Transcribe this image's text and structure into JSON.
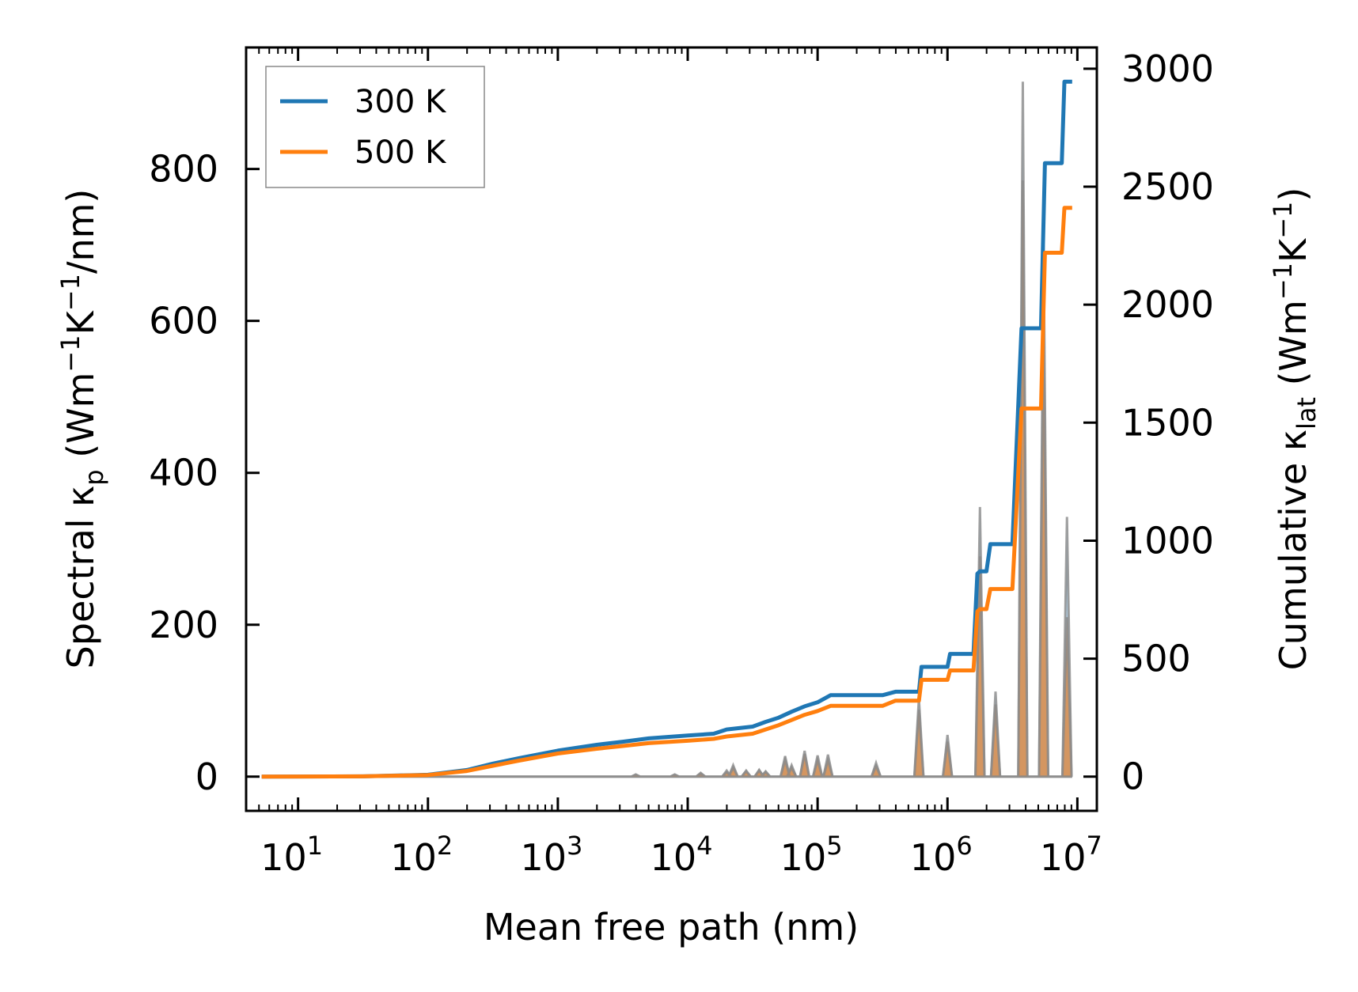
{
  "chart_data": {
    "type": "line",
    "xscale": "log",
    "xlim_log10": [
      0.6,
      7.15
    ],
    "xticks": [
      {
        "base": "10",
        "exp": "1",
        "log10": 1
      },
      {
        "base": "10",
        "exp": "2",
        "log10": 2
      },
      {
        "base": "10",
        "exp": "3",
        "log10": 3
      },
      {
        "base": "10",
        "exp": "4",
        "log10": 4
      },
      {
        "base": "10",
        "exp": "5",
        "log10": 5
      },
      {
        "base": "10",
        "exp": "6",
        "log10": 6
      },
      {
        "base": "10",
        "exp": "7",
        "log10": 7
      }
    ],
    "xlabel": "Mean free path (nm)",
    "left_axis": {
      "ylim": [
        -45,
        960
      ],
      "ticks": [
        0,
        200,
        400,
        600,
        800
      ],
      "tick_labels": [
        "0",
        "200",
        "400",
        "600",
        "800"
      ],
      "label_parts": {
        "a": "Spectral κ",
        "sub": "p",
        "b": " (Wm",
        "sup1": "−1",
        "c": "K",
        "sup2": "−1",
        "d": "/nm)"
      }
    },
    "right_axis": {
      "ylim": [
        -145,
        3090
      ],
      "ticks": [
        0,
        500,
        1000,
        1500,
        2000,
        2500,
        3000
      ],
      "tick_labels": [
        "0",
        "500",
        "1000",
        "1500",
        "2000",
        "2500",
        "3000"
      ],
      "label_parts": {
        "a": "Cumulative κ",
        "sub": "lat",
        "b": " (Wm",
        "sup1": "−1",
        "c": "K",
        "sup2": "−1",
        "d": ")"
      }
    },
    "legend": {
      "position": "top-left",
      "entries": [
        "300 K",
        "500 K"
      ]
    },
    "colors": {
      "300K": "#1f77b4",
      "500K": "#ff7f0e",
      "spectral_300K": "#9ec2dc",
      "spectral_500K": "#d98c4a",
      "spectral_edge": "#8a8a8a"
    },
    "series": [
      {
        "name": "300 K",
        "axis": "right",
        "kind": "cumulative",
        "points": [
          [
            0.72,
            0
          ],
          [
            1.5,
            1
          ],
          [
            2.0,
            8
          ],
          [
            2.3,
            28
          ],
          [
            2.5,
            55
          ],
          [
            2.7,
            78
          ],
          [
            3.0,
            110
          ],
          [
            3.3,
            135
          ],
          [
            3.5,
            148
          ],
          [
            3.7,
            162
          ],
          [
            4.0,
            174
          ],
          [
            4.2,
            182
          ],
          [
            4.3,
            200
          ],
          [
            4.5,
            212
          ],
          [
            4.6,
            232
          ],
          [
            4.7,
            250
          ],
          [
            4.8,
            275
          ],
          [
            4.9,
            298
          ],
          [
            5.0,
            315
          ],
          [
            5.1,
            345
          ],
          [
            5.5,
            345
          ],
          [
            5.6,
            360
          ],
          [
            5.78,
            360
          ],
          [
            5.8,
            465
          ],
          [
            6.0,
            465
          ],
          [
            6.02,
            520
          ],
          [
            6.2,
            520
          ],
          [
            6.23,
            860
          ],
          [
            6.25,
            870
          ],
          [
            6.3,
            870
          ],
          [
            6.33,
            985
          ],
          [
            6.5,
            985
          ],
          [
            6.57,
            1900
          ],
          [
            6.72,
            1900
          ],
          [
            6.75,
            2600
          ],
          [
            6.88,
            2600
          ],
          [
            6.9,
            2945
          ],
          [
            6.96,
            2945
          ]
        ]
      },
      {
        "name": "500 K",
        "axis": "right",
        "kind": "cumulative",
        "points": [
          [
            0.72,
            0
          ],
          [
            1.5,
            1
          ],
          [
            2.0,
            7
          ],
          [
            2.3,
            24
          ],
          [
            2.5,
            46
          ],
          [
            2.7,
            68
          ],
          [
            3.0,
            98
          ],
          [
            3.3,
            118
          ],
          [
            3.5,
            130
          ],
          [
            3.7,
            142
          ],
          [
            4.0,
            152
          ],
          [
            4.2,
            160
          ],
          [
            4.3,
            170
          ],
          [
            4.5,
            182
          ],
          [
            4.6,
            200
          ],
          [
            4.7,
            218
          ],
          [
            4.8,
            240
          ],
          [
            4.9,
            262
          ],
          [
            5.0,
            278
          ],
          [
            5.1,
            300
          ],
          [
            5.5,
            300
          ],
          [
            5.6,
            322
          ],
          [
            5.78,
            322
          ],
          [
            5.8,
            410
          ],
          [
            6.0,
            410
          ],
          [
            6.02,
            450
          ],
          [
            6.2,
            450
          ],
          [
            6.23,
            700
          ],
          [
            6.25,
            710
          ],
          [
            6.3,
            710
          ],
          [
            6.33,
            795
          ],
          [
            6.5,
            795
          ],
          [
            6.57,
            1560
          ],
          [
            6.72,
            1560
          ],
          [
            6.75,
            2220
          ],
          [
            6.88,
            2220
          ],
          [
            6.9,
            2410
          ],
          [
            6.96,
            2410
          ]
        ]
      },
      {
        "name": "300 K spectral",
        "axis": "left",
        "kind": "spectral",
        "spikes": [
          [
            3.6,
            3
          ],
          [
            3.9,
            3
          ],
          [
            4.1,
            5
          ],
          [
            4.3,
            8
          ],
          [
            4.35,
            15
          ],
          [
            4.45,
            8
          ],
          [
            4.55,
            9
          ],
          [
            4.6,
            7
          ],
          [
            4.75,
            27
          ],
          [
            4.8,
            15
          ],
          [
            4.9,
            34
          ],
          [
            5.0,
            28
          ],
          [
            5.08,
            29
          ],
          [
            5.45,
            18
          ],
          [
            5.78,
            103
          ],
          [
            6.0,
            55
          ],
          [
            6.25,
            355
          ],
          [
            6.37,
            112
          ],
          [
            6.58,
            915
          ],
          [
            6.74,
            700
          ],
          [
            6.92,
            342
          ]
        ]
      },
      {
        "name": "500 K spectral",
        "axis": "left",
        "kind": "spectral",
        "spikes": [
          [
            3.6,
            2
          ],
          [
            3.9,
            2
          ],
          [
            4.1,
            4
          ],
          [
            4.3,
            6
          ],
          [
            4.35,
            12
          ],
          [
            4.45,
            7
          ],
          [
            4.55,
            8
          ],
          [
            4.6,
            6
          ],
          [
            4.75,
            22
          ],
          [
            4.8,
            12
          ],
          [
            4.9,
            30
          ],
          [
            5.0,
            22
          ],
          [
            5.08,
            22
          ],
          [
            5.45,
            14
          ],
          [
            5.78,
            88
          ],
          [
            6.0,
            46
          ],
          [
            6.25,
            290
          ],
          [
            6.37,
            95
          ],
          [
            6.58,
            785
          ],
          [
            6.74,
            600
          ],
          [
            6.92,
            210
          ]
        ]
      }
    ]
  }
}
